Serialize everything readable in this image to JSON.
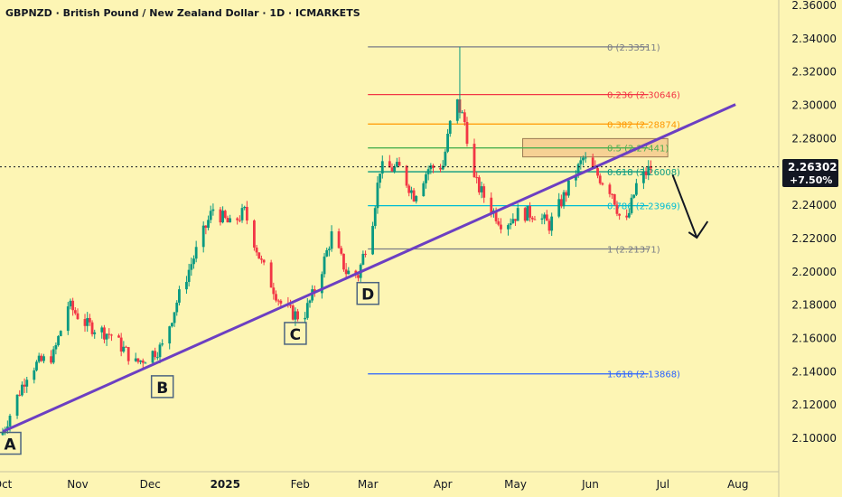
{
  "header": {
    "title": "GBPNZD · British Pound / New Zealand Dollar · 1D · ICMARKETS"
  },
  "price_badge": {
    "price": "2.26302",
    "change": "+7.50%"
  },
  "chart_data": {
    "type": "candlestick",
    "symbol": "GBPNZD",
    "timeframe": "1D",
    "ylim": [
      2.09,
      2.36
    ],
    "y_ticks": [
      "2.36000",
      "2.34000",
      "2.32000",
      "2.30000",
      "2.28000",
      "2.26000",
      "2.24000",
      "2.22000",
      "2.20000",
      "2.18000",
      "2.16000",
      "2.14000",
      "2.12000",
      "2.10000"
    ],
    "x_ticks": [
      {
        "label": "Oct",
        "date": "2024-10-01"
      },
      {
        "label": "Nov",
        "date": "2024-11-01"
      },
      {
        "label": "Dec",
        "date": "2024-12-01"
      },
      {
        "label": "2025",
        "date": "2025-01-01"
      },
      {
        "label": "Feb",
        "date": "2025-02-01"
      },
      {
        "label": "Mar",
        "date": "2025-03-01"
      },
      {
        "label": "Apr",
        "date": "2025-04-01"
      },
      {
        "label": "May",
        "date": "2025-05-01"
      },
      {
        "label": "Jun",
        "date": "2025-06-01"
      },
      {
        "label": "Jul",
        "date": "2025-07-01"
      },
      {
        "label": "Aug",
        "date": "2025-08-01"
      }
    ],
    "current_price": 2.26302,
    "price_path": [
      {
        "date": "2024-10-01",
        "close": 2.104
      },
      {
        "date": "2024-10-12",
        "close": 2.142
      },
      {
        "date": "2024-10-22",
        "close": 2.15
      },
      {
        "date": "2024-10-28",
        "close": 2.18
      },
      {
        "date": "2024-11-05",
        "close": 2.168
      },
      {
        "date": "2024-11-15",
        "close": 2.162
      },
      {
        "date": "2024-11-25",
        "close": 2.145
      },
      {
        "date": "2024-12-06",
        "close": 2.155
      },
      {
        "date": "2024-12-12",
        "close": 2.182
      },
      {
        "date": "2024-12-18",
        "close": 2.205
      },
      {
        "date": "2024-12-27",
        "close": 2.238
      },
      {
        "date": "2025-01-03",
        "close": 2.228
      },
      {
        "date": "2025-01-09",
        "close": 2.236
      },
      {
        "date": "2025-01-16",
        "close": 2.205
      },
      {
        "date": "2025-01-25",
        "close": 2.178
      },
      {
        "date": "2025-02-02",
        "close": 2.172
      },
      {
        "date": "2025-02-08",
        "close": 2.192
      },
      {
        "date": "2025-02-14",
        "close": 2.222
      },
      {
        "date": "2025-02-20",
        "close": 2.2
      },
      {
        "date": "2025-02-25",
        "close": 2.198
      },
      {
        "date": "2025-03-03",
        "close": 2.232
      },
      {
        "date": "2025-03-06",
        "close": 2.262
      },
      {
        "date": "2025-03-14",
        "close": 2.262
      },
      {
        "date": "2025-03-20",
        "close": 2.246
      },
      {
        "date": "2025-03-26",
        "close": 2.262
      },
      {
        "date": "2025-04-01",
        "close": 2.264
      },
      {
        "date": "2025-04-06",
        "close": 2.305
      },
      {
        "date": "2025-04-10",
        "close": 2.29
      },
      {
        "date": "2025-04-14",
        "close": 2.255
      },
      {
        "date": "2025-04-21",
        "close": 2.238
      },
      {
        "date": "2025-04-26",
        "close": 2.228
      },
      {
        "date": "2025-05-02",
        "close": 2.235
      },
      {
        "date": "2025-05-09",
        "close": 2.235
      },
      {
        "date": "2025-05-15",
        "close": 2.228
      },
      {
        "date": "2025-05-22",
        "close": 2.248
      },
      {
        "date": "2025-05-29",
        "close": 2.268
      },
      {
        "date": "2025-06-04",
        "close": 2.258
      },
      {
        "date": "2025-06-10",
        "close": 2.248
      },
      {
        "date": "2025-06-15",
        "close": 2.224
      },
      {
        "date": "2025-06-20",
        "close": 2.252
      },
      {
        "date": "2025-06-26",
        "close": 2.263
      }
    ],
    "trendline": [
      {
        "date": "2024-10-01",
        "price": 2.104
      },
      {
        "date": "2025-07-31",
        "price": 2.3005
      }
    ],
    "fibonacci": {
      "start_date": "2025-03-01",
      "end_date": "2025-06-25",
      "levels": [
        {
          "label": "0 (2.33511)",
          "price": 2.33511,
          "color": "#787b86"
        },
        {
          "label": "0.236 (2.30646)",
          "price": 2.30646,
          "color": "#f23645"
        },
        {
          "label": "0.382 (2.28874)",
          "price": 2.28874,
          "color": "#ff9800"
        },
        {
          "label": "0.5 (2.27441)",
          "price": 2.27441,
          "color": "#4caf50"
        },
        {
          "label": "0.618 (2.26008)",
          "price": 2.26008,
          "color": "#089981"
        },
        {
          "label": "0.786 (2.23969)",
          "price": 2.23969,
          "color": "#00bcd4"
        },
        {
          "label": "1 (2.21371)",
          "price": 2.21371,
          "color": "#787b86"
        },
        {
          "label": "1.618 (2.13868)",
          "price": 2.13868,
          "color": "#2962ff"
        }
      ]
    },
    "zone": {
      "start_date": "2025-05-04",
      "end_date": "2025-07-03",
      "low": 2.269,
      "high": 2.28
    },
    "forecast_arrow": [
      {
        "date": "2025-07-05",
        "price": 2.2582
      },
      {
        "date": "2025-07-15",
        "price": 2.2205
      }
    ],
    "point_labels": [
      {
        "label": "A",
        "date": "2024-10-04",
        "price": 2.097
      },
      {
        "label": "B",
        "date": "2024-12-06",
        "price": 2.131
      },
      {
        "label": "C",
        "date": "2025-01-30",
        "price": 2.163
      },
      {
        "label": "D",
        "date": "2025-03-01",
        "price": 2.187
      }
    ],
    "colors": {
      "background": "#fdf5b4",
      "bull": "#089981",
      "bear": "#f23645",
      "trendline": "#6c3fc2",
      "zone": "#f0b27a",
      "text": "#131722"
    }
  }
}
